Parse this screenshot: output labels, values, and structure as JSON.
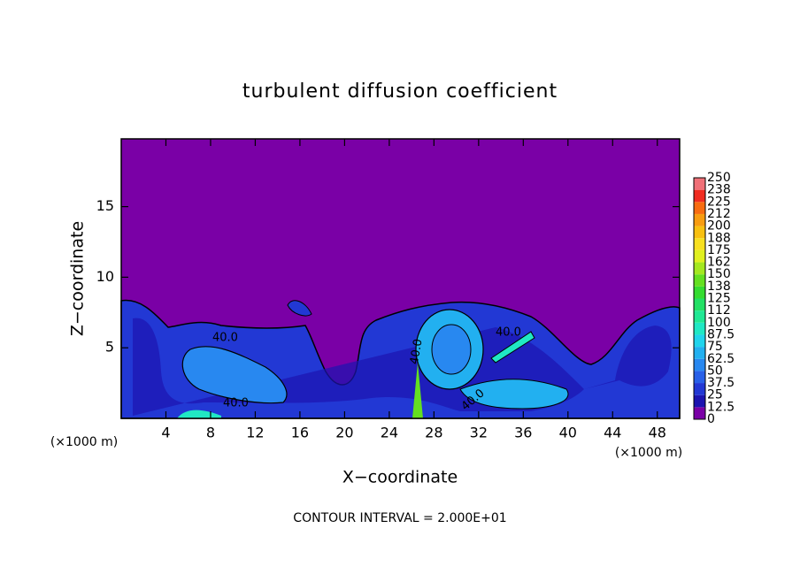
{
  "chart_data": {
    "type": "contour",
    "title": "turbulent diffusion coefficient",
    "x_label": "X−coordinate",
    "y_label": "Z−coordinate",
    "x_unit": "(×1000 m)",
    "footer": "CONTOUR INTERVAL = 2.000E+01",
    "contour_labels": [
      "40.0",
      "40.0",
      "40.0",
      "40.0",
      "40.0"
    ],
    "xlim": [
      0,
      50
    ],
    "xticks": [
      4,
      8,
      12,
      16,
      20,
      24,
      28,
      32,
      36,
      40,
      44,
      48
    ],
    "ylim": [
      0,
      19.8
    ],
    "yticks": [
      5,
      10,
      15
    ],
    "colorbar": {
      "levels": [
        0,
        12.5,
        25,
        37.5,
        50,
        62.5,
        75,
        87.5,
        100,
        112,
        125,
        138,
        150,
        162,
        175,
        188,
        200,
        212,
        225,
        238,
        250
      ],
      "colors": [
        "#7a00a6",
        "#1c14b0",
        "#2238d4",
        "#2860e8",
        "#2888f0",
        "#22b0f0",
        "#20d4ec",
        "#20e8c4",
        "#20e894",
        "#22e064",
        "#34dc30",
        "#64e020",
        "#a4e820",
        "#e0f020",
        "#f8e020",
        "#f8c010",
        "#f89c10",
        "#f86c10",
        "#f02c20",
        "#f07078"
      ]
    }
  }
}
